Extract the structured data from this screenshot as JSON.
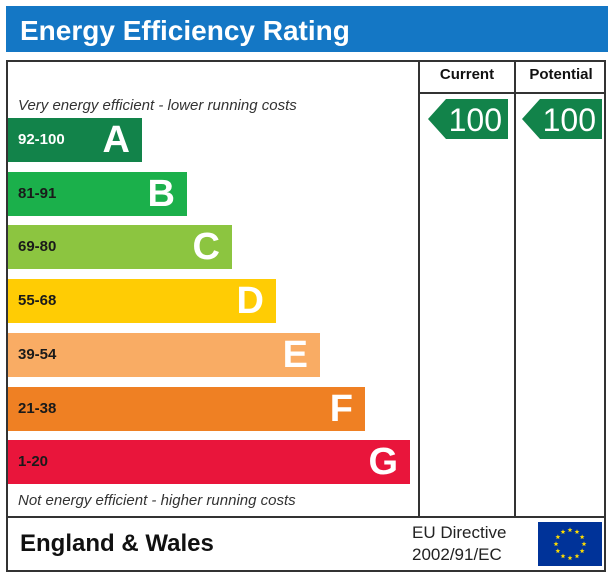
{
  "header": {
    "title": "Energy Efficiency Rating"
  },
  "columns": {
    "current": "Current",
    "potential": "Potential"
  },
  "notes": {
    "top": "Very energy efficient - lower running costs",
    "bottom": "Not energy efficient - higher running costs"
  },
  "chart_data": {
    "type": "bar",
    "title": "Energy Efficiency Rating",
    "bands": [
      {
        "letter": "A",
        "range": "92-100",
        "color": "#12834a"
      },
      {
        "letter": "B",
        "range": "81-91",
        "color": "#1bb04b"
      },
      {
        "letter": "C",
        "range": "69-80",
        "color": "#8cc540"
      },
      {
        "letter": "D",
        "range": "55-68",
        "color": "#ffcc04"
      },
      {
        "letter": "E",
        "range": "39-54",
        "color": "#f9ac64"
      },
      {
        "letter": "F",
        "range": "21-38",
        "color": "#ef8023"
      },
      {
        "letter": "G",
        "range": "1-20",
        "color": "#e9153b"
      }
    ],
    "ratings": {
      "current": {
        "value": 100,
        "band": "A",
        "label": "100",
        "color": "#12834a"
      },
      "potential": {
        "value": 100,
        "band": "A",
        "label": "100",
        "color": "#12834a"
      }
    }
  },
  "footer": {
    "region": "England & Wales",
    "directive_line1": "EU Directive",
    "directive_line2": "2002/91/EC",
    "flag_icon": "eu-flag-icon",
    "flag_color": "#003399",
    "star_color": "#ffdd00"
  }
}
